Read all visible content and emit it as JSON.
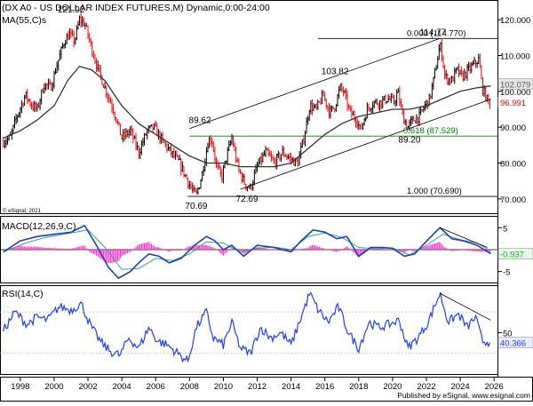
{
  "header": {
    "title": "(DX A0 - US DOLLAR INDEX FUTURES,M) Dynamic,0:00-24:00",
    "ma_label": "MA(55,C)s",
    "copyright": "© eSignal, 2021"
  },
  "footer": {
    "publisher": "Published by eSignal, www.esignal.com"
  },
  "colors": {
    "up": "#000000",
    "down": "#ff0000",
    "ma": "#333333",
    "fib": "#008000",
    "macd": "#1f3fbf",
    "signal": "#3aa0a0",
    "hist": "#ff33cc",
    "rsi": "#1f3fff",
    "badge_price": "#ff0000"
  },
  "chart_data": [
    {
      "type": "candlestick",
      "title": "(DX A0 - US DOLLAR INDEX FUTURES,M) Dynamic,0:00-24:00",
      "x_axis": {
        "label": "",
        "ticks": [
          "1998",
          "2000",
          "2002",
          "2004",
          "2006",
          "2008",
          "2010",
          "2012",
          "2014",
          "2016",
          "2018",
          "2020",
          "2022",
          "2024",
          "2026"
        ],
        "range": [
          1996.8,
          2026.2
        ]
      },
      "y_axis": {
        "ticks": [
          70,
          80,
          90,
          100,
          110,
          120
        ],
        "tick_labels": [
          "70.000",
          "80.000",
          "90.000",
          "100.000",
          "110.000",
          "120.000"
        ],
        "range": [
          66,
          125
        ]
      },
      "grid": false,
      "price_path": [
        [
          1997.0,
          86
        ],
        [
          1997.4,
          87
        ],
        [
          1997.8,
          93
        ],
        [
          1998.3,
          99
        ],
        [
          1998.7,
          96
        ],
        [
          1999.0,
          95
        ],
        [
          1999.4,
          102
        ],
        [
          1999.8,
          101
        ],
        [
          2000.2,
          108
        ],
        [
          2000.6,
          114
        ],
        [
          2000.9,
          116
        ],
        [
          2001.2,
          114
        ],
        [
          2001.5,
          120
        ],
        [
          2001.8,
          119
        ],
        [
          2002.1,
          114
        ],
        [
          2002.6,
          106
        ],
        [
          2003.0,
          101
        ],
        [
          2003.5,
          95
        ],
        [
          2004.0,
          87
        ],
        [
          2004.5,
          89
        ],
        [
          2005.0,
          83
        ],
        [
          2005.5,
          89
        ],
        [
          2005.9,
          90
        ],
        [
          2006.4,
          86
        ],
        [
          2006.9,
          83
        ],
        [
          2007.4,
          80
        ],
        [
          2007.8,
          76
        ],
        [
          2008.2,
          72
        ],
        [
          2008.4,
          71
        ],
        [
          2008.7,
          76
        ],
        [
          2009.1,
          86
        ],
        [
          2009.3,
          87
        ],
        [
          2009.6,
          79
        ],
        [
          2009.9,
          76
        ],
        [
          2010.2,
          82
        ],
        [
          2010.5,
          87
        ],
        [
          2010.9,
          78
        ],
        [
          2011.3,
          74
        ],
        [
          2011.6,
          73
        ],
        [
          2012.0,
          79
        ],
        [
          2012.5,
          83
        ],
        [
          2013.0,
          80
        ],
        [
          2013.5,
          83
        ],
        [
          2014.0,
          81
        ],
        [
          2014.4,
          80
        ],
        [
          2014.8,
          88
        ],
        [
          2015.1,
          96
        ],
        [
          2015.5,
          95
        ],
        [
          2015.9,
          99
        ],
        [
          2016.3,
          94
        ],
        [
          2016.6,
          96
        ],
        [
          2016.9,
          101
        ],
        [
          2017.1,
          100
        ],
        [
          2017.5,
          94
        ],
        [
          2017.9,
          92
        ],
        [
          2018.1,
          89
        ],
        [
          2018.5,
          95
        ],
        [
          2018.9,
          97
        ],
        [
          2019.3,
          97
        ],
        [
          2019.7,
          98
        ],
        [
          2020.1,
          97
        ],
        [
          2020.3,
          100
        ],
        [
          2020.6,
          93
        ],
        [
          2020.9,
          90
        ],
        [
          2021.2,
          92
        ],
        [
          2021.6,
          93
        ],
        [
          2021.9,
          96
        ],
        [
          2022.2,
          98
        ],
        [
          2022.5,
          105
        ],
        [
          2022.8,
          113
        ],
        [
          2022.9,
          111
        ],
        [
          2023.1,
          104
        ],
        [
          2023.5,
          103
        ],
        [
          2023.8,
          106
        ],
        [
          2024.1,
          104
        ],
        [
          2024.5,
          106
        ],
        [
          2024.9,
          108
        ],
        [
          2025.1,
          109
        ],
        [
          2025.3,
          101
        ],
        [
          2025.6,
          97.5
        ],
        [
          2025.8,
          96.99
        ]
      ],
      "ma_55": [
        [
          1997.0,
          87
        ],
        [
          1998.0,
          89
        ],
        [
          1999.0,
          92
        ],
        [
          2000.0,
          96
        ],
        [
          2000.8,
          103
        ],
        [
          2001.5,
          107
        ],
        [
          2002.2,
          106
        ],
        [
          2003.0,
          103
        ],
        [
          2004.0,
          96
        ],
        [
          2005.0,
          91
        ],
        [
          2006.0,
          88
        ],
        [
          2007.0,
          85
        ],
        [
          2008.0,
          82
        ],
        [
          2009.0,
          80
        ],
        [
          2010.0,
          80
        ],
        [
          2011.0,
          79
        ],
        [
          2012.0,
          79
        ],
        [
          2013.0,
          79
        ],
        [
          2014.0,
          80
        ],
        [
          2015.0,
          84
        ],
        [
          2016.0,
          88
        ],
        [
          2017.0,
          91
        ],
        [
          2018.0,
          93
        ],
        [
          2019.0,
          94
        ],
        [
          2020.0,
          95
        ],
        [
          2021.0,
          95
        ],
        [
          2022.0,
          96
        ],
        [
          2023.0,
          98
        ],
        [
          2024.0,
          100
        ],
        [
          2025.0,
          101
        ],
        [
          2025.8,
          101.5
        ]
      ],
      "trend_channel": {
        "upper": [
          [
            2008.0,
            89.62
          ],
          [
            2022.8,
            114.77
          ]
        ],
        "lower": [
          [
            2011.0,
            72.69
          ],
          [
            2025.8,
            97.8
          ]
        ]
      },
      "fibonacci": [
        {
          "label": "0.000 (114.770)",
          "value": 114.77
        },
        {
          "label": "0.618 (87.529)",
          "value": 87.529
        },
        {
          "label": "1.000 (70.690)",
          "value": 70.69
        }
      ],
      "annotations": [
        {
          "text": "121.02",
          "x": 2001.0,
          "y": 121.02
        },
        {
          "text": "89.62",
          "x": 2008.3,
          "y": 89.62
        },
        {
          "text": "70.69",
          "x": 2008.4,
          "y": 70.69
        },
        {
          "text": "72.69",
          "x": 2011.4,
          "y": 72.69
        },
        {
          "text": "103.82",
          "x": 2016.6,
          "y": 103.82
        },
        {
          "text": "89.20",
          "x": 2021.0,
          "y": 89.2
        },
        {
          "text": "114.77",
          "x": 2022.8,
          "y": 114.77
        }
      ],
      "badges": [
        {
          "text": "102.079",
          "value": 102.079,
          "color": "#555555"
        },
        {
          "text": "96.991",
          "value": 96.991,
          "color": "#ff0000"
        }
      ]
    },
    {
      "type": "line",
      "title": "MACD(12,26,9,C)",
      "y_axis": {
        "ticks": [
          5,
          -5
        ],
        "tick_labels": [
          "5",
          "-5"
        ],
        "range": [
          -7.5,
          7.5
        ]
      },
      "series": [
        {
          "name": "MACD",
          "values": [
            [
              1997.0,
              -0.5
            ],
            [
              1998.0,
              2
            ],
            [
              1999.0,
              3
            ],
            [
              2000.0,
              3.5
            ],
            [
              2001.0,
              4
            ],
            [
              2001.8,
              5.5
            ],
            [
              2002.5,
              1
            ],
            [
              2003.2,
              -4
            ],
            [
              2003.8,
              -6.5
            ],
            [
              2004.5,
              -5
            ],
            [
              2005.0,
              -3
            ],
            [
              2005.6,
              -1
            ],
            [
              2006.2,
              -1.5
            ],
            [
              2006.8,
              -3
            ],
            [
              2007.5,
              -2
            ],
            [
              2008.3,
              1
            ],
            [
              2009.0,
              3
            ],
            [
              2009.5,
              2
            ],
            [
              2010.0,
              0
            ],
            [
              2010.5,
              1
            ],
            [
              2011.2,
              -1.5
            ],
            [
              2012.0,
              1
            ],
            [
              2013.0,
              0.5
            ],
            [
              2014.0,
              -0.5
            ],
            [
              2014.6,
              2
            ],
            [
              2015.3,
              4.5
            ],
            [
              2016.0,
              4
            ],
            [
              2016.7,
              2.5
            ],
            [
              2017.3,
              3
            ],
            [
              2018.0,
              -1.5
            ],
            [
              2018.7,
              0.5
            ],
            [
              2019.4,
              0.5
            ],
            [
              2020.0,
              0.3
            ],
            [
              2020.7,
              -1.5
            ],
            [
              2021.3,
              -1
            ],
            [
              2021.9,
              1.5
            ],
            [
              2022.8,
              5
            ],
            [
              2023.5,
              2.5
            ],
            [
              2024.2,
              2
            ],
            [
              2025.0,
              1
            ],
            [
              2025.8,
              -0.937
            ]
          ]
        },
        {
          "name": "Signal",
          "values": [
            [
              1997.0,
              -0.5
            ],
            [
              1998.3,
              1.5
            ],
            [
              1999.5,
              2.8
            ],
            [
              2001.0,
              3.8
            ],
            [
              2002.0,
              4.5
            ],
            [
              2003.0,
              0.5
            ],
            [
              2004.0,
              -4.5
            ],
            [
              2005.0,
              -4.3
            ],
            [
              2006.0,
              -2
            ],
            [
              2007.0,
              -2.5
            ],
            [
              2008.0,
              -1
            ],
            [
              2009.0,
              1.8
            ],
            [
              2010.0,
              1.5
            ],
            [
              2011.0,
              -0.5
            ],
            [
              2012.0,
              0.3
            ],
            [
              2013.0,
              0.6
            ],
            [
              2014.0,
              0
            ],
            [
              2015.0,
              3
            ],
            [
              2016.0,
              3.8
            ],
            [
              2017.0,
              2.8
            ],
            [
              2018.0,
              0.5
            ],
            [
              2019.0,
              0.2
            ],
            [
              2020.0,
              0.4
            ],
            [
              2021.0,
              -1.2
            ],
            [
              2022.0,
              1
            ],
            [
              2023.0,
              3.5
            ],
            [
              2024.0,
              2.3
            ],
            [
              2025.0,
              1.5
            ],
            [
              2025.8,
              -0.3
            ]
          ]
        }
      ],
      "trendline": [
        [
          2022.8,
          5
        ],
        [
          2025.6,
          0.5
        ]
      ],
      "badges": [
        {
          "text": "-0.937",
          "value": -0.937,
          "color": "#22aa22"
        }
      ]
    },
    {
      "type": "line",
      "title": "RSI(14,C)",
      "y_axis": {
        "ticks": [
          50
        ],
        "tick_labels": [
          "50"
        ],
        "range": [
          10,
          95
        ]
      },
      "series": [
        {
          "name": "RSI",
          "values": [
            [
              1997.0,
              52
            ],
            [
              1997.7,
              70
            ],
            [
              1998.4,
              58
            ],
            [
              1999.0,
              65
            ],
            [
              1999.6,
              62
            ],
            [
              2000.3,
              75
            ],
            [
              2001.0,
              72
            ],
            [
              2001.6,
              78
            ],
            [
              2002.2,
              55
            ],
            [
              2002.8,
              40
            ],
            [
              2003.3,
              32
            ],
            [
              2003.9,
              28
            ],
            [
              2004.4,
              45
            ],
            [
              2005.0,
              35
            ],
            [
              2005.6,
              55
            ],
            [
              2006.1,
              42
            ],
            [
              2006.7,
              38
            ],
            [
              2007.3,
              30
            ],
            [
              2007.9,
              22
            ],
            [
              2008.4,
              55
            ],
            [
              2009.0,
              70
            ],
            [
              2009.4,
              45
            ],
            [
              2010.0,
              38
            ],
            [
              2010.5,
              60
            ],
            [
              2011.0,
              35
            ],
            [
              2011.6,
              30
            ],
            [
              2012.2,
              55
            ],
            [
              2012.8,
              45
            ],
            [
              2013.4,
              50
            ],
            [
              2014.0,
              38
            ],
            [
              2014.6,
              65
            ],
            [
              2015.1,
              88
            ],
            [
              2015.6,
              72
            ],
            [
              2016.2,
              60
            ],
            [
              2016.8,
              75
            ],
            [
              2017.4,
              50
            ],
            [
              2018.0,
              35
            ],
            [
              2018.6,
              60
            ],
            [
              2019.2,
              55
            ],
            [
              2019.8,
              58
            ],
            [
              2020.4,
              62
            ],
            [
              2020.9,
              35
            ],
            [
              2021.5,
              45
            ],
            [
              2022.1,
              60
            ],
            [
              2022.8,
              88
            ],
            [
              2023.3,
              60
            ],
            [
              2023.9,
              68
            ],
            [
              2024.4,
              55
            ],
            [
              2024.9,
              65
            ],
            [
              2025.3,
              42
            ],
            [
              2025.8,
              40.366
            ]
          ]
        }
      ],
      "trendline": [
        [
          2022.8,
          88
        ],
        [
          2025.8,
          62
        ]
      ],
      "badges": [
        {
          "text": "40.366",
          "value": 40.366,
          "color": "#1f3fff"
        }
      ]
    }
  ]
}
